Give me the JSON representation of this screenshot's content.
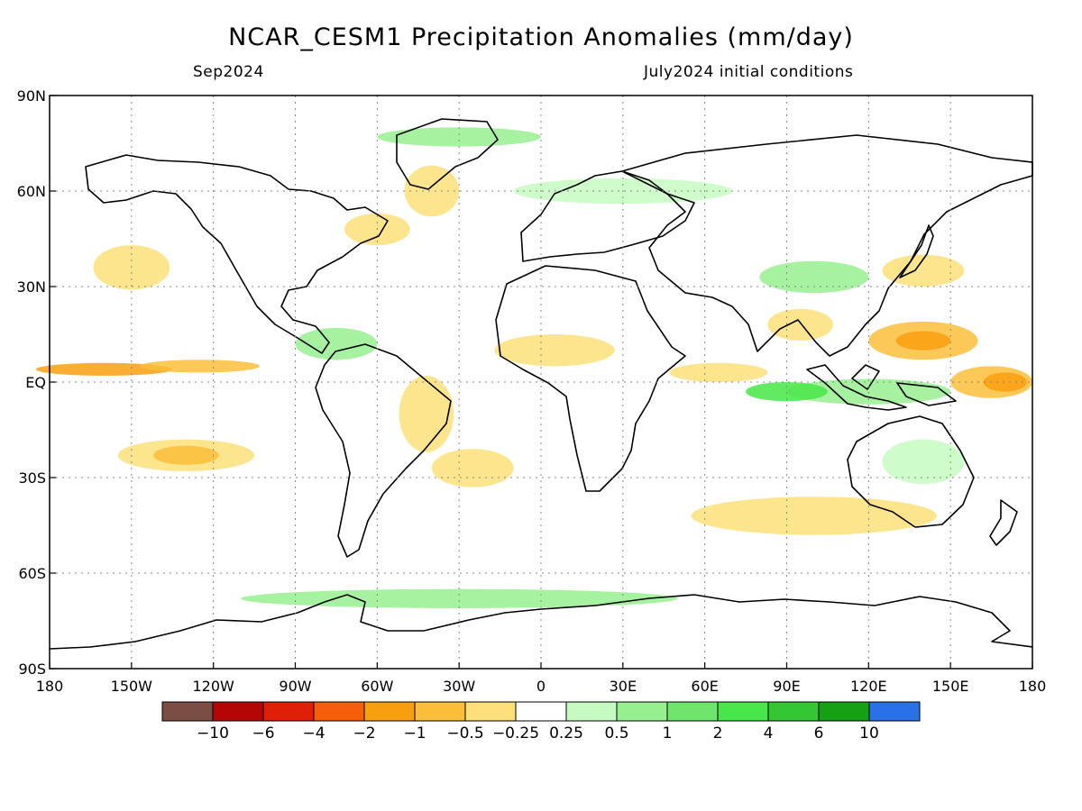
{
  "header": {
    "title": "NCAR_CESM1 Precipitation Anomalies (mm/day)",
    "valid_month": "Sep2024",
    "init_text": "July2024 initial conditions"
  },
  "map": {
    "lat_ticks": [
      {
        "value": 90,
        "label": "90N"
      },
      {
        "value": 60,
        "label": "60N"
      },
      {
        "value": 30,
        "label": "30N"
      },
      {
        "value": 0,
        "label": "EQ"
      },
      {
        "value": -30,
        "label": "30S"
      },
      {
        "value": -60,
        "label": "60S"
      },
      {
        "value": -90,
        "label": "90S"
      }
    ],
    "lon_ticks": [
      {
        "value": -180,
        "label": "180"
      },
      {
        "value": -150,
        "label": "150W"
      },
      {
        "value": -120,
        "label": "120W"
      },
      {
        "value": -90,
        "label": "90W"
      },
      {
        "value": -60,
        "label": "60W"
      },
      {
        "value": -30,
        "label": "30W"
      },
      {
        "value": 0,
        "label": "0"
      },
      {
        "value": 30,
        "label": "30E"
      },
      {
        "value": 60,
        "label": "60E"
      },
      {
        "value": 90,
        "label": "90E"
      },
      {
        "value": 120,
        "label": "120E"
      },
      {
        "value": 150,
        "label": "150E"
      },
      {
        "value": 180,
        "label": "180"
      }
    ]
  },
  "colorbar": {
    "colors": [
      "#7b4e44",
      "#b30707",
      "#df1f08",
      "#f65e09",
      "#f99f0f",
      "#fbbe3a",
      "#fde07a",
      "#ffffff",
      "#c5fbc2",
      "#97f08f",
      "#6ee56b",
      "#48e648",
      "#34c734",
      "#14a114",
      "#2a70e6"
    ],
    "labels": [
      "-10",
      "-6",
      "-4",
      "-2",
      "-1",
      "-0.5",
      "-0.25",
      "0.25",
      "0.5",
      "1",
      "2",
      "4",
      "6",
      "10"
    ]
  },
  "anomaly_fields": [
    {
      "lon": -160,
      "lat": 4,
      "rx": 25,
      "ry": 2,
      "level": -2
    },
    {
      "lon": -125,
      "lat": 5,
      "rx": 22,
      "ry": 2,
      "level": -1
    },
    {
      "lon": -150,
      "lat": 36,
      "rx": 14,
      "ry": 7,
      "level": -0.5
    },
    {
      "lon": -130,
      "lat": -23,
      "rx": 25,
      "ry": 5,
      "level": -0.5
    },
    {
      "lon": -130,
      "lat": -23,
      "rx": 12,
      "ry": 3,
      "level": -1
    },
    {
      "lon": -42,
      "lat": -10,
      "rx": 10,
      "ry": 12,
      "level": -0.5
    },
    {
      "lon": -25,
      "lat": -27,
      "rx": 15,
      "ry": 6,
      "level": -0.5
    },
    {
      "lon": 5,
      "lat": 10,
      "rx": 22,
      "ry": 5,
      "level": -0.5
    },
    {
      "lon": -40,
      "lat": 60,
      "rx": 10,
      "ry": 8,
      "level": -0.5
    },
    {
      "lon": -60,
      "lat": 48,
      "rx": 12,
      "ry": 5,
      "level": -0.5
    },
    {
      "lon": 65,
      "lat": 3,
      "rx": 18,
      "ry": 3,
      "level": -0.5
    },
    {
      "lon": 140,
      "lat": 13,
      "rx": 20,
      "ry": 6,
      "level": -1
    },
    {
      "lon": 140,
      "lat": 13,
      "rx": 10,
      "ry": 3,
      "level": -2
    },
    {
      "lon": 165,
      "lat": 0,
      "rx": 15,
      "ry": 5,
      "level": -1
    },
    {
      "lon": 170,
      "lat": 0,
      "rx": 8,
      "ry": 3,
      "level": -2
    },
    {
      "lon": 140,
      "lat": 35,
      "rx": 15,
      "ry": 5,
      "level": -0.5
    },
    {
      "lon": 95,
      "lat": 18,
      "rx": 12,
      "ry": 5,
      "level": -0.5
    },
    {
      "lon": 100,
      "lat": -42,
      "rx": 45,
      "ry": 6,
      "level": -0.5
    },
    {
      "lon": 30,
      "lat": 50,
      "rx": 25,
      "ry": 5,
      "level": -0.25
    },
    {
      "lon": 120,
      "lat": -3,
      "rx": 30,
      "ry": 4,
      "level": 0.5
    },
    {
      "lon": 90,
      "lat": -3,
      "rx": 15,
      "ry": 3,
      "level": 2
    },
    {
      "lon": 100,
      "lat": 33,
      "rx": 20,
      "ry": 5,
      "level": 0.5
    },
    {
      "lon": 30,
      "lat": 60,
      "rx": 40,
      "ry": 4,
      "level": 0.25
    },
    {
      "lon": -30,
      "lat": -68,
      "rx": 80,
      "ry": 3,
      "level": 0.5
    },
    {
      "lon": -30,
      "lat": 77,
      "rx": 30,
      "ry": 3,
      "level": 0.5
    },
    {
      "lon": 140,
      "lat": -25,
      "rx": 15,
      "ry": 7,
      "level": 0.25
    },
    {
      "lon": -75,
      "lat": 12,
      "rx": 15,
      "ry": 5,
      "level": 0.5
    }
  ]
}
